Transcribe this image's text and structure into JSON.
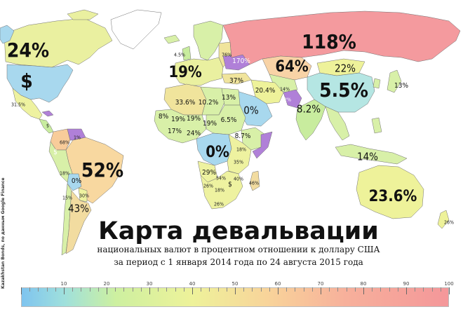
{
  "title": "Карта девальвации",
  "subtitle_line1": "национальных валют в процентном отношении к доллару США",
  "subtitle_line2": "за период с 1 января 2014 года по 24 августа 2015 года",
  "credit": "Kazakhstan Bonds, по данным Google Finance",
  "legend": {
    "ticks": [
      "10",
      "20",
      "30",
      "40",
      "50",
      "60",
      "70",
      "80",
      "90",
      "100"
    ],
    "range": [
      0,
      100
    ]
  },
  "colors": {
    "ocean": "#ffffff",
    "scale_low": "#7fc4ef",
    "scale_mid": "#eef29a",
    "scale_high": "#f4979a",
    "over_100": "#b87be0",
    "border": "#6f6f6f"
  },
  "countries": [
    {
      "name": "Canada",
      "label": "24%",
      "value": 24
    },
    {
      "name": "USA",
      "label": "$",
      "value": 0
    },
    {
      "name": "Mexico",
      "label": "31.5%",
      "value": 31.5
    },
    {
      "name": "Brazil",
      "label": "52%",
      "value": 52
    },
    {
      "name": "Argentina",
      "label": "43%",
      "value": 43
    },
    {
      "name": "Colombia",
      "label": "68%",
      "value": 68
    },
    {
      "name": "Peru",
      "label": "18%",
      "value": 18
    },
    {
      "name": "Bolivia",
      "label": "0%",
      "value": 0
    },
    {
      "name": "Ecuador",
      "label": "$",
      "value": 0
    },
    {
      "name": "Panama",
      "label": "$",
      "value": 0
    },
    {
      "name": "Costa Rica",
      "label": "1%",
      "value": 1
    },
    {
      "name": "Chile",
      "label": "15%",
      "value": 15
    },
    {
      "name": "Paraguay",
      "label": "30%",
      "value": 30
    },
    {
      "name": "Russia",
      "label": "118%",
      "value": 118
    },
    {
      "name": "Ukraine",
      "label": "170%",
      "value": 170
    },
    {
      "name": "Kazakhstan",
      "label": "64%",
      "value": 64
    },
    {
      "name": "Mongolia",
      "label": "22%",
      "value": 22
    },
    {
      "name": "China",
      "label": "5.5%",
      "value": 5.5
    },
    {
      "name": "India",
      "label": "8.2%",
      "value": 8.2
    },
    {
      "name": "Japan",
      "label": "13%",
      "value": 13
    },
    {
      "name": "Indonesia",
      "label": "14%",
      "value": 14
    },
    {
      "name": "Australia",
      "label": "23.6%",
      "value": 23.6
    },
    {
      "name": "New Zealand",
      "label": "26%",
      "value": 26
    },
    {
      "name": "Iran",
      "label": "20.4%",
      "value": 20.4
    },
    {
      "name": "Turkey",
      "label": "37%",
      "value": 37
    },
    {
      "name": "Eurozone",
      "label": "19%",
      "value": 19
    },
    {
      "name": "Algeria",
      "label": "33.6%",
      "value": 33.6
    },
    {
      "name": "Libya",
      "label": "10.2%",
      "value": 10.2
    },
    {
      "name": "Egypt",
      "label": "13%",
      "value": 13
    },
    {
      "name": "Saudi Arabia",
      "label": "0%",
      "value": 0
    },
    {
      "name": "Sudan",
      "label": "6.5%",
      "value": 6.5
    },
    {
      "name": "Ethiopia",
      "label": "8.7%",
      "value": 8.7
    },
    {
      "name": "Mauritania",
      "label": "8%",
      "value": 8
    },
    {
      "name": "Mali",
      "label": "19%",
      "value": 19
    },
    {
      "name": "Niger",
      "label": "19%",
      "value": 19
    },
    {
      "name": "Chad",
      "label": "19%",
      "value": 19
    },
    {
      "name": "Nigeria",
      "label": "24%",
      "value": 24
    },
    {
      "name": "Senegal",
      "label": "17%",
      "value": 17
    },
    {
      "name": "DR Congo",
      "label": "0%",
      "value": 0
    },
    {
      "name": "Angola",
      "label": "29%",
      "value": 29
    },
    {
      "name": "Namibia",
      "label": "26%",
      "value": 26
    },
    {
      "name": "South Africa",
      "label": "26%",
      "value": 26
    },
    {
      "name": "Zambia",
      "label": "54%",
      "value": 54
    },
    {
      "name": "Madagascar",
      "label": "46%",
      "value": 46
    },
    {
      "name": "Tanzania",
      "label": "35%",
      "value": 35
    },
    {
      "name": "Kenya",
      "label": "18%",
      "value": 18
    },
    {
      "name": "Botswana",
      "label": "18%",
      "value": 18
    },
    {
      "name": "Zimbabwe",
      "label": "$",
      "value": 0
    },
    {
      "name": "Mozambique",
      "label": "40%",
      "value": 40
    },
    {
      "name": "Uzbekistan",
      "label": "14%",
      "value": 14
    },
    {
      "name": "Pakistan",
      "label": "2%",
      "value": 2
    },
    {
      "name": "Norway",
      "label": "4.5%",
      "value": 4.5
    },
    {
      "name": "Belarus",
      "label": "76%",
      "value": 76
    }
  ]
}
